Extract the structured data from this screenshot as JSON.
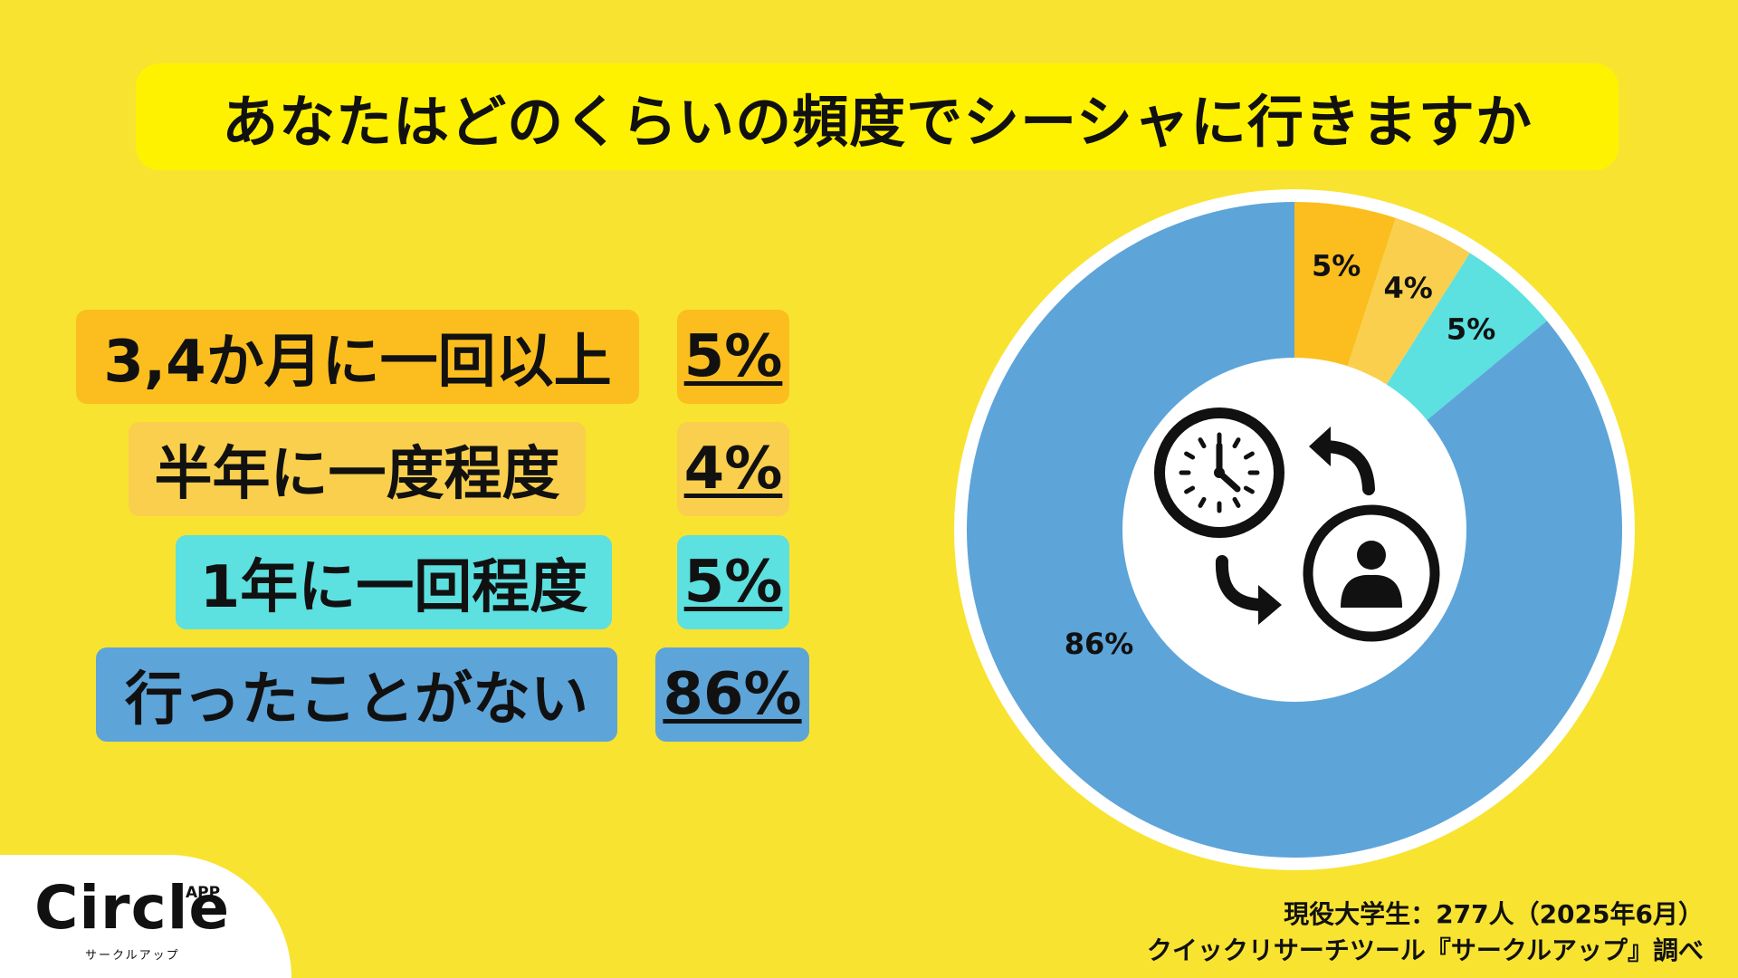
{
  "chart_data": {
    "type": "pie",
    "title": "あなたはどのくらいの頻度でシーシャに行きますか",
    "categories": [
      "3,4か月に一回以上",
      "半年に一度程度",
      "1年に一回程度",
      "行ったことがない"
    ],
    "values": [
      5,
      4,
      5,
      86
    ],
    "value_labels": [
      "5%",
      "4%",
      "5%",
      "86%"
    ],
    "colors": [
      "#FBBE1E",
      "#F9CF4D",
      "#5CE0E0",
      "#5DA4D9"
    ],
    "legend": "left"
  },
  "center_icon": "clock-and-person-cycle-icon",
  "logo": {
    "word": "Circle",
    "app": "APP",
    "sub": "サークルアップ"
  },
  "source": {
    "line1": "現役大学生：277人（2025年6月）",
    "line2": "クイックリサーチツール『サークルアップ』調べ"
  }
}
